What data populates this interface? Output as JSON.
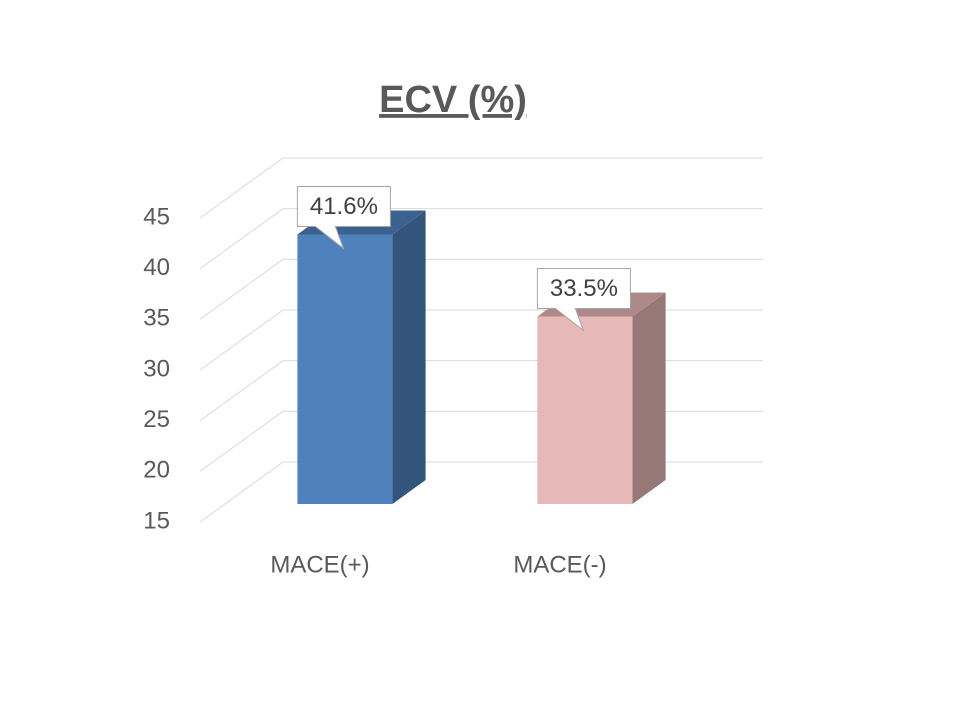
{
  "chart_data": {
    "type": "bar3d",
    "title": "ECV (%)",
    "categories": [
      "MACE(+)",
      "MACE(-)"
    ],
    "values": [
      41.6,
      33.5
    ],
    "value_labels": [
      "41.6%",
      "33.5%"
    ],
    "colors": [
      "#4f81bd",
      "#e6b8b7"
    ],
    "ylim": [
      15,
      45
    ],
    "yticks": [
      15,
      20,
      25,
      30,
      35,
      40,
      45
    ],
    "grid": true
  }
}
